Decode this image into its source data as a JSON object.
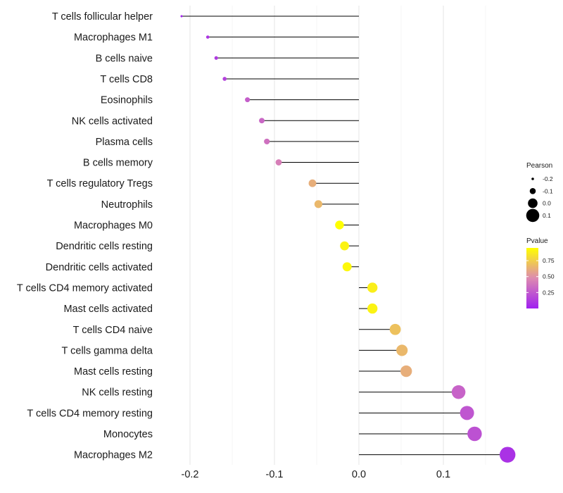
{
  "chart_data": {
    "type": "lollipop",
    "categories": [
      "T cells follicular helper",
      "Macrophages M1",
      "B cells naive",
      "T cells CD8",
      "Eosinophils",
      "NK cells activated",
      "Plasma cells",
      "B cells memory",
      "T cells regulatory  Tregs ",
      "Neutrophils",
      "Macrophages M0",
      "Dendritic cells resting",
      "Dendritic cells activated",
      "T cells CD4 memory activated",
      "Mast cells activated",
      "T cells CD4 naive",
      "T cells gamma delta",
      "Mast cells resting",
      "NK cells resting",
      "T cells CD4 memory resting",
      "Monocytes",
      "Macrophages M2"
    ],
    "pearson": [
      -0.21,
      -0.179,
      -0.169,
      -0.159,
      -0.132,
      -0.115,
      -0.109,
      -0.095,
      -0.055,
      -0.048,
      -0.023,
      -0.017,
      -0.014,
      0.016,
      0.016,
      0.043,
      0.051,
      0.056,
      0.118,
      0.128,
      0.137,
      0.176
    ],
    "pvalue": [
      0.02,
      0.1,
      0.12,
      0.15,
      0.28,
      0.32,
      0.36,
      0.42,
      0.62,
      0.66,
      0.95,
      0.9,
      0.92,
      0.88,
      0.9,
      0.7,
      0.66,
      0.62,
      0.3,
      0.24,
      0.22,
      0.08
    ],
    "xlim": [
      -0.235,
      0.19
    ],
    "x_ticks": [
      -0.2,
      -0.1,
      0.0,
      0.1
    ],
    "x_tick_labels": [
      "-0.2",
      "-0.1",
      "0.0",
      "0.1"
    ],
    "legend": {
      "size_title": "Pearson",
      "size_values": [
        -0.2,
        -0.1,
        0.0,
        0.1
      ],
      "size_labels": [
        "-0.2",
        "-0.1",
        "0.0",
        "0.1"
      ],
      "color_title": "Pvalue",
      "color_ticks": [
        0.25,
        0.5,
        0.75
      ],
      "color_tick_labels": [
        "0.25",
        "0.50",
        "0.75"
      ],
      "color_range": [
        0.0,
        0.95
      ],
      "color_low": "#a020f0",
      "color_mid": "#dd8ab0",
      "color_high": "#ffff00",
      "placement": "right"
    },
    "segment_color": "#000000",
    "grid": true
  }
}
